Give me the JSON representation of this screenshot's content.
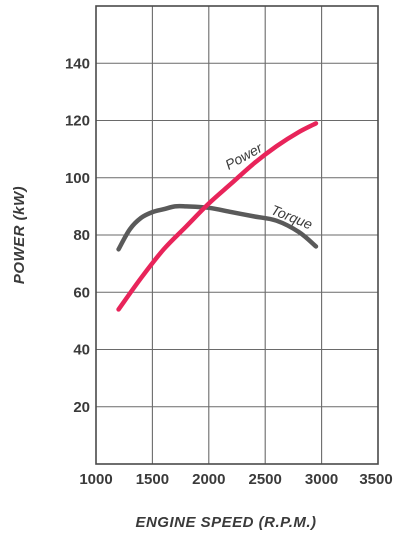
{
  "chart_data": {
    "type": "line",
    "title": "",
    "xlabel": "ENGINE SPEED (R.P.M.)",
    "ylabel": "POWER (kW)",
    "xlim": [
      1000,
      3500
    ],
    "ylim": [
      0,
      160
    ],
    "x_ticks": [
      1000,
      1500,
      2000,
      2500,
      3000,
      3500
    ],
    "x_tick_labels": [
      "1000",
      "1500",
      "2000",
      "2500",
      "3000",
      "3500"
    ],
    "y_ticks": [
      20,
      40,
      60,
      80,
      100,
      120,
      140
    ],
    "y_tick_labels": [
      "20",
      "40",
      "60",
      "80",
      "100",
      "120",
      "140"
    ],
    "grid": true,
    "legend": "none",
    "series": [
      {
        "name": "Power",
        "color": "#e8245a",
        "x": [
          1200,
          1400,
          1600,
          1800,
          2000,
          2200,
          2400,
          2600,
          2800,
          2950
        ],
        "y": [
          54,
          65,
          75,
          83,
          91,
          98,
          105,
          111,
          116,
          119
        ]
      },
      {
        "name": "Torque",
        "color": "#5a5a5a",
        "x": [
          1200,
          1300,
          1400,
          1500,
          1600,
          1700,
          1800,
          2000,
          2200,
          2400,
          2600,
          2800,
          2950
        ],
        "y": [
          75,
          82,
          86,
          88,
          89,
          90,
          90,
          89.5,
          88,
          86.5,
          85,
          81,
          76
        ]
      }
    ]
  }
}
